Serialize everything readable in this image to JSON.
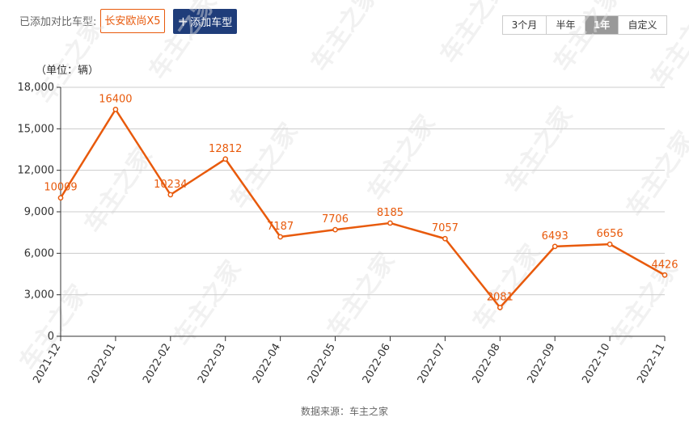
{
  "toolbar": {
    "compare_label": "已添加对比车型:",
    "selected_car": "长安欧尚X5",
    "add_button_label": "添加车型",
    "add_button_icon": "plus-icon",
    "ranges": [
      "3个月",
      "半年",
      "1年",
      "自定义"
    ],
    "active_range": "1年"
  },
  "watermark_text": "车主之家",
  "unit_label": "（单位：辆）",
  "source_label": "数据来源：车主之家",
  "colors": {
    "line": "#e85a0c",
    "point_fill": "#ffffff",
    "label": "#e85a0c",
    "grid": "#cccccc",
    "accent_button": "#1f3d7a"
  },
  "chart_data": {
    "type": "line",
    "title": "",
    "xlabel": "",
    "ylabel": "（单位：辆）",
    "categories": [
      "2021-12",
      "2022-01",
      "2022-02",
      "2022-03",
      "2022-04",
      "2022-05",
      "2022-06",
      "2022-07",
      "2022-08",
      "2022-09",
      "2022-10",
      "2022-11"
    ],
    "series": [
      {
        "values": [
          10009,
          16400,
          10234,
          12812,
          7187,
          7706,
          8185,
          7057,
          2081,
          6493,
          6656,
          4426
        ]
      }
    ],
    "ylim": [
      0,
      18000
    ],
    "yticks": [
      0,
      3000,
      6000,
      9000,
      12000,
      15000,
      18000
    ],
    "ytick_labels": [
      "0",
      "3,000",
      "6,000",
      "9,000",
      "12,000",
      "15,000",
      "18,000"
    ],
    "grid": true,
    "legend": "none",
    "data_labels": true
  }
}
